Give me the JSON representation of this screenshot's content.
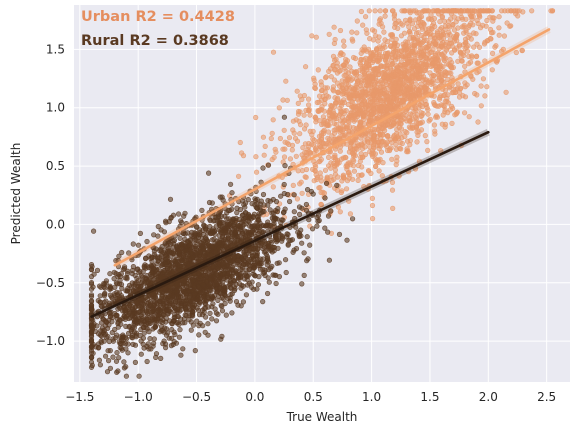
{
  "chart_data": {
    "type": "scatter",
    "xlabel": "True Wealth",
    "ylabel": "Predicted Wealth",
    "xlim": [
      -1.55,
      2.7
    ],
    "ylim": [
      -1.35,
      1.88
    ],
    "x_ticks": [
      -1.5,
      -1.0,
      -0.5,
      0.0,
      0.5,
      1.0,
      1.5,
      2.0,
      2.5
    ],
    "x_tick_labels": [
      "−1.5",
      "−1.0",
      "−0.5",
      "0.0",
      "0.5",
      "1.0",
      "1.5",
      "2.0",
      "2.5"
    ],
    "y_ticks": [
      -1.0,
      -0.5,
      0.0,
      0.5,
      1.0,
      1.5
    ],
    "y_tick_labels": [
      "−1.0",
      "−0.5",
      "0.0",
      "0.5",
      "1.0",
      "1.5"
    ],
    "grid": true,
    "background": "#eaeaf2",
    "annotations": [
      {
        "text": "Urban R2 = 0.4428",
        "color": "#e58e5f"
      },
      {
        "text": "Rural R2 = 0.3868",
        "color": "#5a3a22"
      }
    ],
    "series": [
      {
        "key": "urban",
        "kind": "scatter",
        "color": "#e8996a",
        "point_alpha": 0.6,
        "x_mean": 1.15,
        "x_sd": 0.42,
        "slope_tendency": 0.62,
        "intercept_tendency": 0.42,
        "noise_sd": 0.3,
        "x_range": [
          -1.2,
          2.55
        ],
        "n_points": 2200,
        "fit_line": {
          "x": [
            -1.2,
            2.52
          ],
          "y": [
            -0.35,
            1.67
          ],
          "color": "#f4a46c"
        }
      },
      {
        "key": "rural",
        "kind": "scatter",
        "color": "#5a3a22",
        "point_alpha": 0.6,
        "x_mean": -0.55,
        "x_sd": 0.42,
        "slope_tendency": 0.5,
        "intercept_tendency": -0.15,
        "noise_sd": 0.22,
        "x_range": [
          -1.4,
          1.95
        ],
        "n_points": 2600,
        "fit_line": {
          "x": [
            -1.4,
            2.0
          ],
          "y": [
            -0.79,
            0.79
          ],
          "color": "#2a1a10"
        }
      }
    ]
  }
}
